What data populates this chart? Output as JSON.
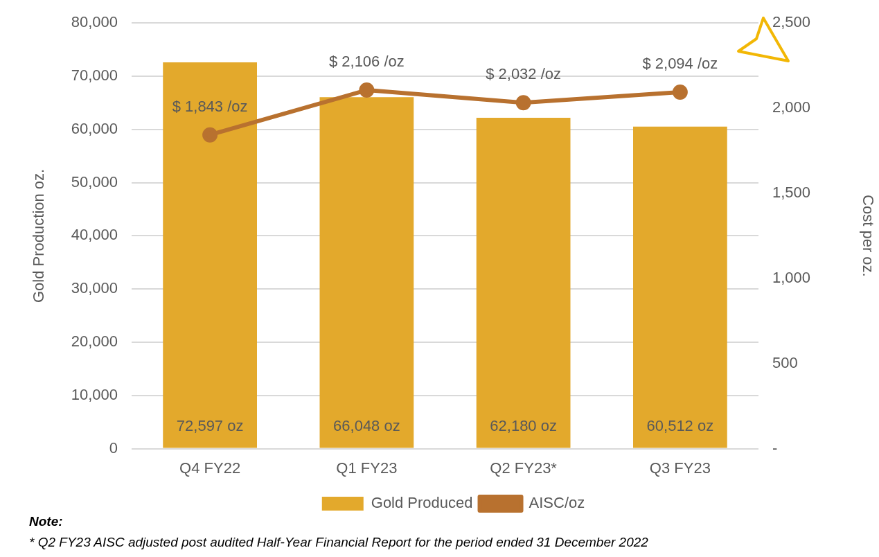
{
  "chart_data": {
    "type": "bar",
    "categories": [
      "Q4 FY22",
      "Q1 FY23",
      "Q2 FY23*",
      "Q3 FY23"
    ],
    "series": [
      {
        "name": "Gold Produced",
        "color": "#e3a92c",
        "values": [
          72597,
          66048,
          62180,
          60512
        ],
        "value_labels": [
          "72,597 oz",
          "66,048 oz",
          "62,180 oz",
          "60,512 oz"
        ]
      },
      {
        "name": "AISC/oz",
        "type": "line",
        "axis": "y2",
        "color": "#b8712f",
        "values": [
          1843,
          2106,
          2032,
          2094
        ],
        "value_labels": [
          "$ 1,843 /oz",
          "$ 2,106 /oz",
          "$ 2,032 /oz",
          "$ 2,094 /oz"
        ]
      }
    ],
    "ylabel": "Gold Production oz.",
    "y2label": "Cost per oz.",
    "ylim": [
      0,
      80000
    ],
    "yticks": [
      0,
      {
        "value": 10000,
        "label": "10,000"
      },
      {
        "value": 20000,
        "label": "20,000"
      },
      {
        "value": 30000,
        "label": "30,000"
      },
      {
        "value": 40000,
        "label": "40,000"
      },
      {
        "value": 50000,
        "label": "50,000"
      },
      {
        "value": 60000,
        "label": "60,000"
      },
      {
        "value": 70000,
        "label": "70,000"
      },
      {
        "value": 80000,
        "label": "80,000"
      }
    ],
    "y2lim": [
      0,
      2500
    ],
    "y2ticks": [
      {
        "value": 0,
        "label": "-"
      },
      500,
      {
        "value": 1000,
        "label": "1,000"
      },
      {
        "value": 1500,
        "label": "1,500"
      },
      {
        "value": 2000,
        "label": "2,000"
      },
      {
        "value": 2500,
        "label": "2,500"
      }
    ],
    "grid": "y",
    "legend": "bottom",
    "marker": "circle",
    "annotations": [
      "Note:",
      "* Q2 FY23 AISC adjusted post audited Half-Year Financial Report for the period ended 31 December 2022"
    ]
  }
}
